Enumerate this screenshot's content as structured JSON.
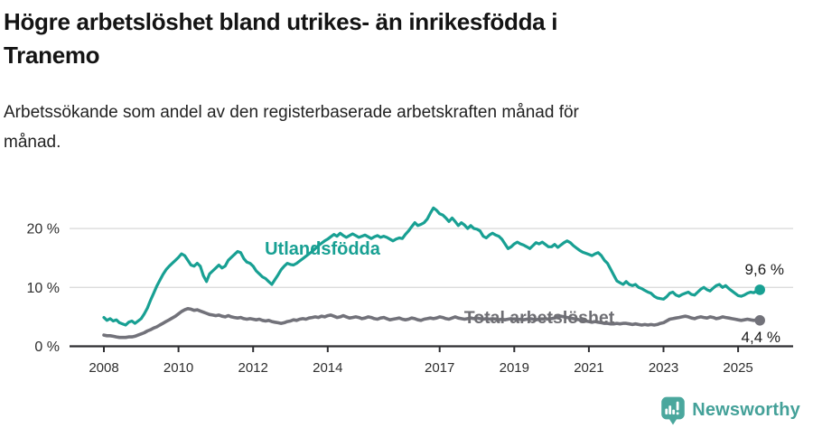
{
  "header": {
    "title_lines": [
      "Högre arbetslöshet bland utrikes- än inrikesfödda i",
      "Tranemo"
    ],
    "subtitle_lines": [
      "Arbetssökande som andel av den registerbaserade arbetskraften månad för",
      "månad."
    ]
  },
  "chart_data": {
    "type": "line",
    "title": "Högre arbetslöshet bland utrikes- än inrikesfödda i Tranemo",
    "subtitle": "Arbetssökande som andel av den registerbaserade arbetskraften månad för månad.",
    "unit": "%",
    "frequency": "monthly",
    "period_start": "2008-01",
    "period_end": "2025-08",
    "ylim": [
      0,
      25
    ],
    "grid": "horizontal",
    "y_ticks": [
      {
        "value": 0,
        "label": "0 %"
      },
      {
        "value": 10,
        "label": "10 %"
      },
      {
        "value": 20,
        "label": "20 %"
      }
    ],
    "x_ticks": [
      {
        "year": 2008,
        "label": "2008"
      },
      {
        "year": 2010,
        "label": "2010"
      },
      {
        "year": 2012,
        "label": "2012"
      },
      {
        "year": 2014,
        "label": "2014"
      },
      {
        "year": 2017,
        "label": "2017"
      },
      {
        "year": 2019,
        "label": "2019"
      },
      {
        "year": 2021,
        "label": "2021"
      },
      {
        "year": 2023,
        "label": "2023"
      },
      {
        "year": 2025,
        "label": "2025"
      }
    ],
    "series": [
      {
        "key": "utlandsfodda",
        "name": "Utlandsfödda",
        "color": "#18a093",
        "end_label": "9,6 %",
        "end_value": 9.6,
        "values": [
          4.9,
          4.4,
          4.7,
          4.3,
          4.5,
          4.0,
          3.8,
          3.6,
          4.1,
          4.3,
          3.9,
          4.3,
          4.7,
          5.5,
          6.5,
          7.8,
          9.0,
          10.2,
          11.2,
          12.2,
          13.0,
          13.6,
          14.1,
          14.6,
          15.1,
          15.7,
          15.4,
          14.6,
          13.8,
          13.6,
          14.1,
          13.6,
          12.0,
          11.0,
          12.3,
          12.8,
          13.3,
          13.8,
          13.3,
          13.6,
          14.6,
          15.1,
          15.6,
          16.1,
          15.9,
          14.9,
          14.3,
          14.1,
          13.6,
          12.8,
          12.3,
          11.8,
          11.5,
          11.0,
          10.5,
          11.3,
          12.1,
          13.0,
          13.6,
          14.1,
          13.9,
          13.8,
          14.1,
          14.5,
          14.9,
          15.3,
          15.7,
          16.1,
          16.6,
          17.1,
          17.5,
          17.9,
          18.2,
          18.6,
          19.0,
          18.7,
          19.2,
          18.8,
          18.5,
          18.8,
          19.1,
          18.8,
          18.5,
          18.7,
          18.9,
          18.6,
          18.3,
          18.6,
          18.8,
          18.5,
          18.7,
          18.5,
          18.2,
          17.9,
          18.2,
          18.4,
          18.3,
          19.0,
          19.6,
          20.3,
          21.0,
          20.5,
          20.7,
          21.0,
          21.6,
          22.6,
          23.5,
          23.1,
          22.5,
          22.3,
          21.8,
          21.2,
          21.8,
          21.2,
          20.5,
          21.0,
          20.6,
          20.0,
          20.5,
          20.0,
          19.9,
          19.6,
          18.7,
          18.4,
          18.9,
          19.2,
          18.9,
          18.7,
          18.2,
          17.4,
          16.6,
          16.9,
          17.4,
          17.7,
          17.4,
          17.2,
          16.9,
          16.6,
          17.1,
          17.6,
          17.4,
          17.7,
          17.3,
          16.9,
          16.9,
          17.3,
          16.8,
          17.2,
          17.6,
          17.9,
          17.6,
          17.1,
          16.7,
          16.3,
          16.0,
          15.8,
          15.6,
          15.4,
          15.7,
          15.9,
          15.4,
          14.6,
          14.1,
          13.1,
          12.1,
          11.1,
          10.8,
          10.5,
          11.0,
          10.5,
          10.3,
          10.5,
          10.0,
          9.8,
          9.5,
          9.2,
          9.0,
          8.5,
          8.2,
          8.1,
          8.0,
          8.4,
          9.0,
          9.2,
          8.7,
          8.5,
          8.8,
          9.0,
          9.2,
          8.8,
          8.7,
          9.2,
          9.7,
          10.0,
          9.6,
          9.4,
          9.9,
          10.3,
          10.5,
          10.0,
          10.3,
          9.8,
          9.4,
          9.0,
          8.6,
          8.5,
          8.7,
          9.0,
          9.2,
          9.1,
          9.4,
          9.6
        ]
      },
      {
        "key": "total-arbetsloshet",
        "name": "Total arbetslöshet",
        "color": "#72727a",
        "end_label": "4,4 %",
        "end_value": 4.4,
        "values": [
          1.9,
          1.8,
          1.8,
          1.7,
          1.6,
          1.5,
          1.5,
          1.5,
          1.6,
          1.6,
          1.7,
          1.9,
          2.1,
          2.3,
          2.6,
          2.8,
          3.1,
          3.3,
          3.6,
          3.9,
          4.2,
          4.5,
          4.8,
          5.1,
          5.5,
          5.9,
          6.2,
          6.4,
          6.3,
          6.1,
          6.2,
          6.0,
          5.8,
          5.6,
          5.4,
          5.3,
          5.2,
          5.3,
          5.1,
          5.0,
          5.2,
          5.0,
          4.9,
          4.8,
          4.9,
          4.7,
          4.6,
          4.7,
          4.6,
          4.5,
          4.6,
          4.4,
          4.3,
          4.4,
          4.2,
          4.1,
          4.0,
          3.9,
          4.0,
          4.2,
          4.3,
          4.5,
          4.4,
          4.6,
          4.7,
          4.6,
          4.8,
          4.9,
          5.0,
          4.9,
          5.1,
          5.0,
          5.2,
          5.3,
          5.1,
          4.9,
          5.0,
          5.2,
          5.0,
          4.8,
          4.9,
          5.0,
          4.9,
          4.7,
          4.8,
          5.0,
          4.9,
          4.7,
          4.6,
          4.8,
          4.9,
          4.7,
          4.5,
          4.6,
          4.7,
          4.8,
          4.6,
          4.5,
          4.6,
          4.8,
          4.7,
          4.5,
          4.4,
          4.6,
          4.7,
          4.8,
          4.7,
          4.8,
          5.0,
          4.9,
          4.7,
          4.6,
          4.8,
          5.0,
          4.8,
          4.7,
          4.6,
          4.7,
          4.8,
          4.7,
          4.8,
          4.7,
          4.6,
          4.7,
          4.6,
          4.7,
          4.6,
          4.5,
          4.6,
          4.5,
          4.6,
          4.7,
          4.6,
          4.5,
          4.6,
          4.5,
          4.6,
          4.7,
          4.6,
          4.5,
          4.6,
          4.6,
          4.7,
          4.6,
          4.7,
          4.8,
          5.0,
          5.1,
          5.0,
          4.9,
          4.8,
          4.7,
          4.6,
          4.5,
          4.4,
          4.3,
          4.2,
          4.1,
          4.2,
          4.1,
          4.0,
          3.9,
          3.9,
          3.8,
          3.8,
          3.9,
          3.8,
          3.9,
          3.9,
          3.8,
          3.7,
          3.8,
          3.7,
          3.6,
          3.7,
          3.6,
          3.7,
          3.6,
          3.7,
          3.9,
          4.0,
          4.3,
          4.6,
          4.7,
          4.8,
          4.9,
          5.0,
          5.1,
          5.0,
          4.8,
          4.7,
          4.9,
          5.0,
          4.9,
          4.8,
          5.0,
          4.9,
          4.7,
          4.8,
          5.0,
          4.9,
          4.8,
          4.7,
          4.6,
          4.5,
          4.4,
          4.5,
          4.6,
          4.5,
          4.4,
          4.5,
          4.4
        ]
      }
    ]
  },
  "footer": {
    "brand": "Newsworthy",
    "brand_color": "#44a199",
    "icon": "newsworthy-barchart-pin-icon"
  }
}
